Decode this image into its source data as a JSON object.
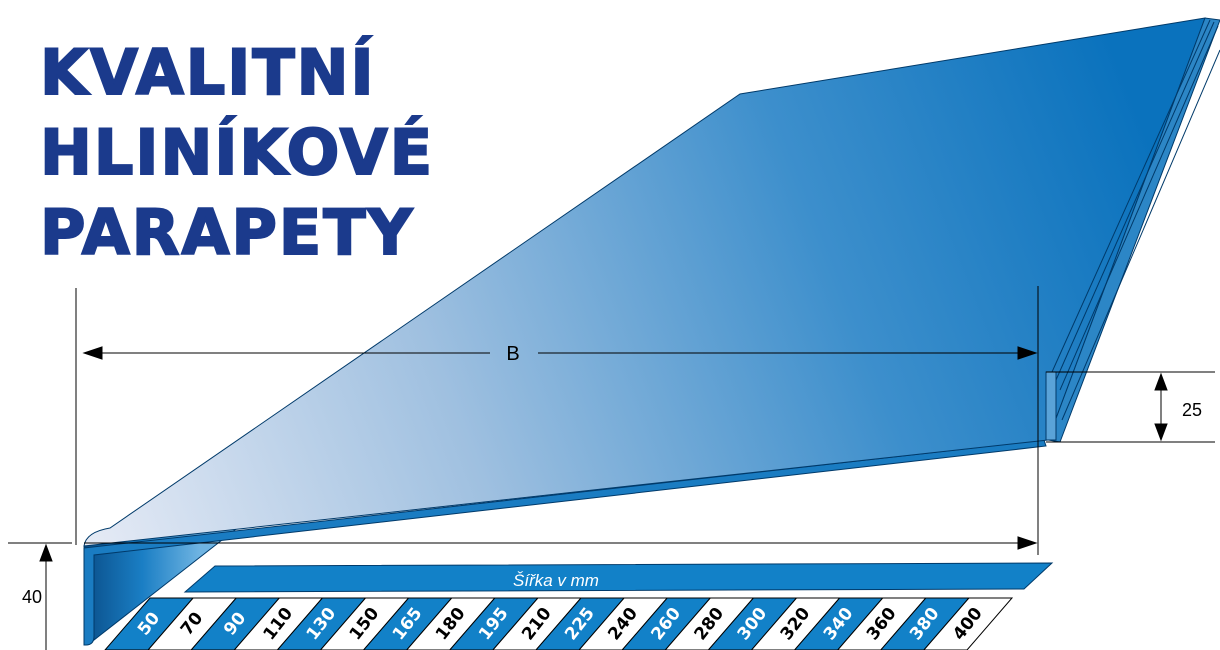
{
  "headline": [
    "KVALITNÍ",
    "HLINÍKOVÉ",
    "PARAPETY"
  ],
  "dimensions": {
    "width_label": "B",
    "back_height": "25",
    "front_height": "40"
  },
  "width_table": {
    "title": "Šířka v mm",
    "values": [
      "50",
      "70",
      "90",
      "110",
      "130",
      "150",
      "165",
      "180",
      "195",
      "210",
      "225",
      "240",
      "260",
      "280",
      "300",
      "320",
      "340",
      "360",
      "380",
      "400"
    ]
  },
  "colors": {
    "brand_blue": "#1b3a8c",
    "sill_blue": "#0a6fb8",
    "sill_light": "#dfe6f2",
    "band_blue": "#1281c8",
    "line": "#000000"
  }
}
